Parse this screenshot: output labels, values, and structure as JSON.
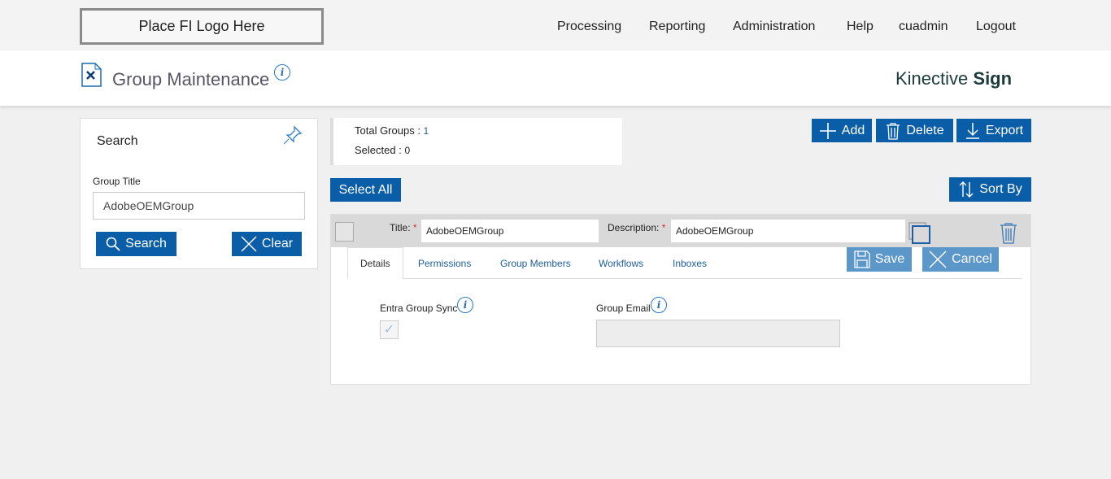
{
  "logo_text": "Place FI Logo Here",
  "nav": [
    "Processing",
    "Reporting",
    "Administration",
    "Help",
    "cuadmin",
    "Logout"
  ],
  "page_title": "Group Maintenance",
  "brand": {
    "light": "Kinective ",
    "bold": "Sign"
  },
  "search": {
    "title": "Search",
    "group_title_label": "Group Title",
    "group_title_value": "AdobeOEMGroup",
    "search_button": "Search",
    "clear_button": "Clear"
  },
  "stats": {
    "total_label": "Total Groups : ",
    "total_value": "1",
    "selected_label": "Selected : ",
    "selected_value": "0"
  },
  "toolbar": {
    "add": "Add",
    "delete": "Delete",
    "export": "Export",
    "select_all": "Select All",
    "sort_by": "Sort By"
  },
  "group": {
    "title_label": "Title:",
    "title_value": "AdobeOEMGroup",
    "description_label": "Description:",
    "description_value": "AdobeOEMGroup",
    "required_mark": "*",
    "save": "Save",
    "cancel": "Cancel"
  },
  "tabs": [
    "Details",
    "Permissions",
    "Group Members",
    "Workflows",
    "Inboxes"
  ],
  "details": {
    "entra_label": "Entra Group Sync",
    "entra_checked": true,
    "email_label": "Group Email",
    "email_value": ""
  },
  "colors": {
    "primary": "#0a5ea8",
    "primary_disabled": "#5b97c9",
    "required": "#d32f2f"
  }
}
